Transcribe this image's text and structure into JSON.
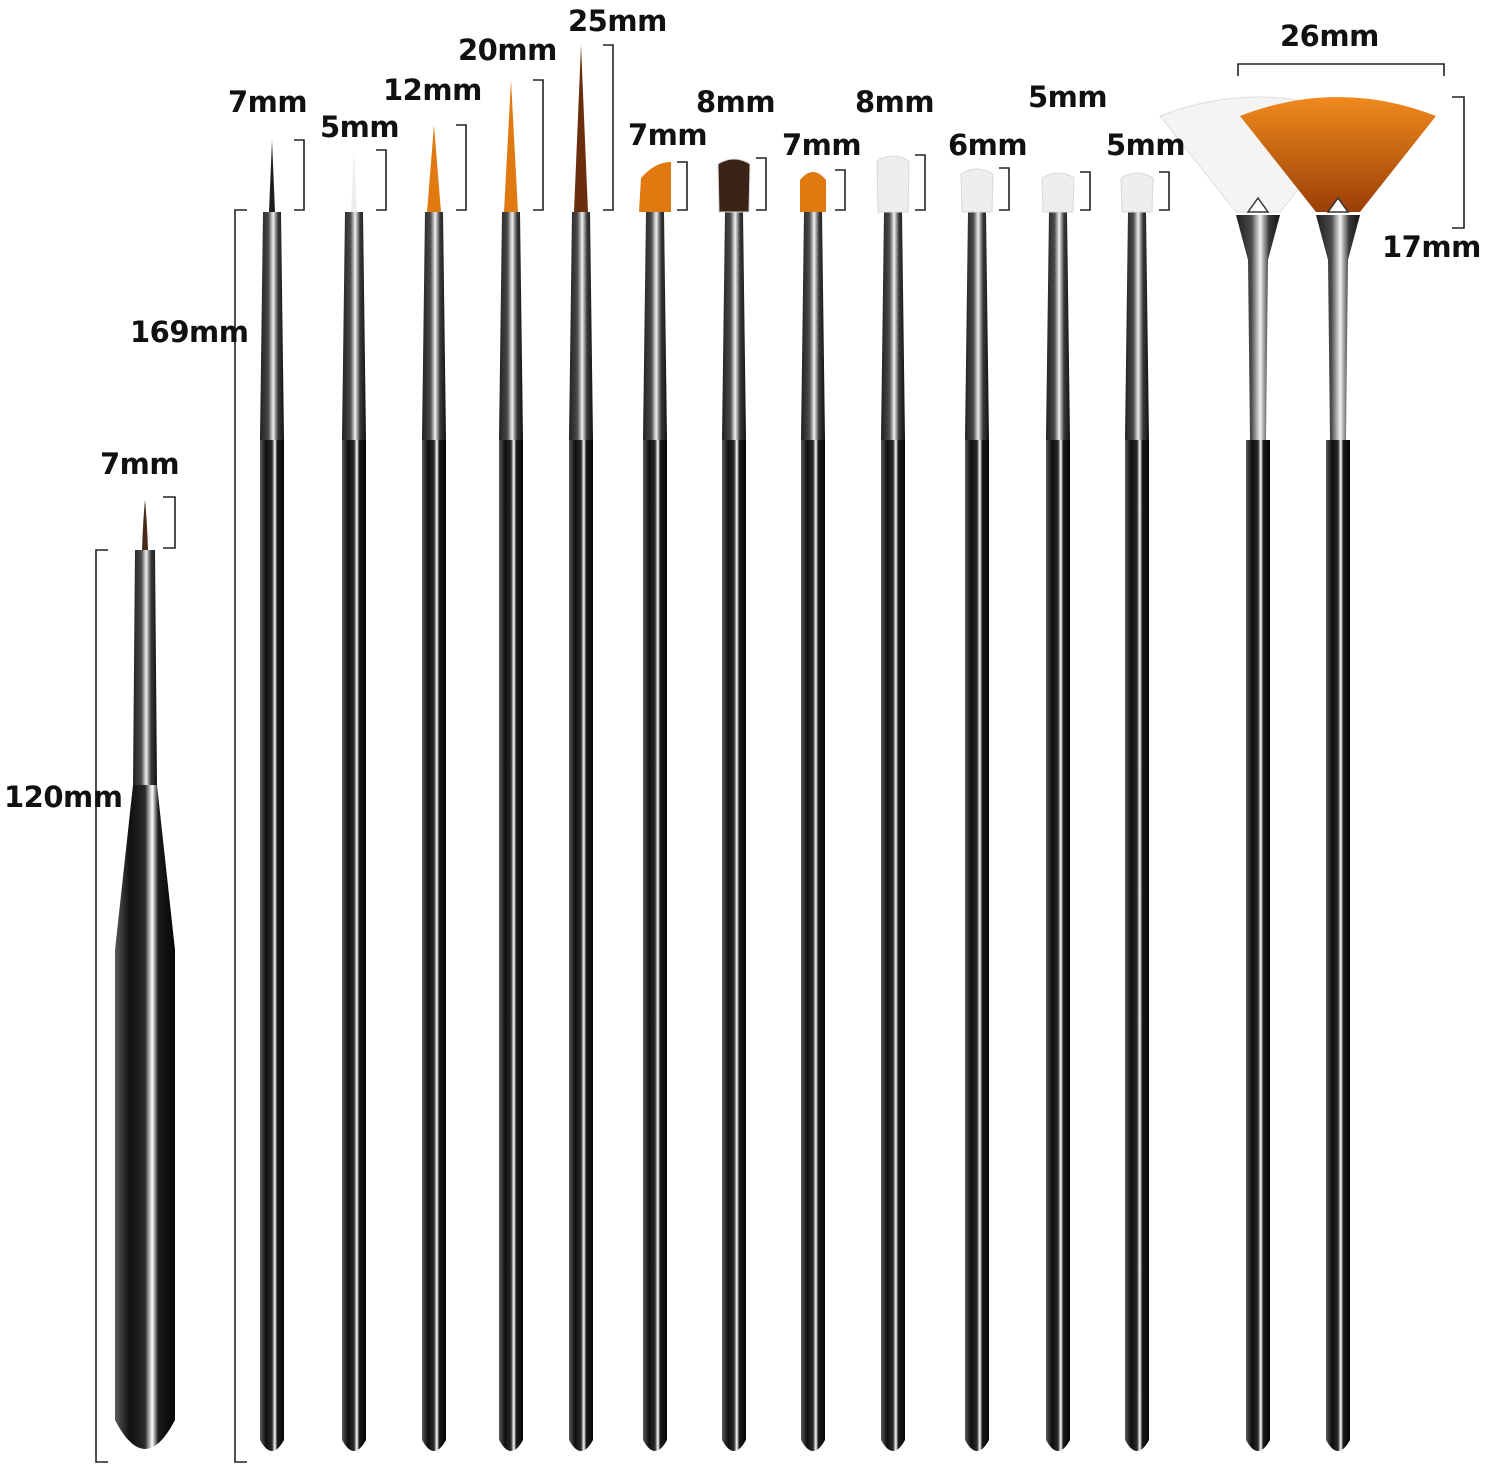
{
  "labels": {
    "short_brush_tip": "7mm",
    "short_brush_length": "120mm",
    "long_brush_length": "169mm",
    "tip_1": "7mm",
    "tip_2": "5mm",
    "tip_3": "12mm",
    "tip_4": "20mm",
    "tip_5": "25mm",
    "tip_6": "7mm",
    "tip_7": "8mm",
    "tip_8": "7mm",
    "tip_9": "8mm",
    "tip_10": "6mm",
    "tip_11": "5mm",
    "tip_12": "5mm",
    "fan_width": "26mm",
    "fan_height": "17mm"
  },
  "colors": {
    "background": "#ffffff",
    "handle": "#1c1c1c",
    "ferrule": "#3a3a3a",
    "bristle_orange": "#e07a10",
    "bristle_brown": "#3a2418",
    "bristle_white": "#eeeeee",
    "bracket": "#222222"
  }
}
